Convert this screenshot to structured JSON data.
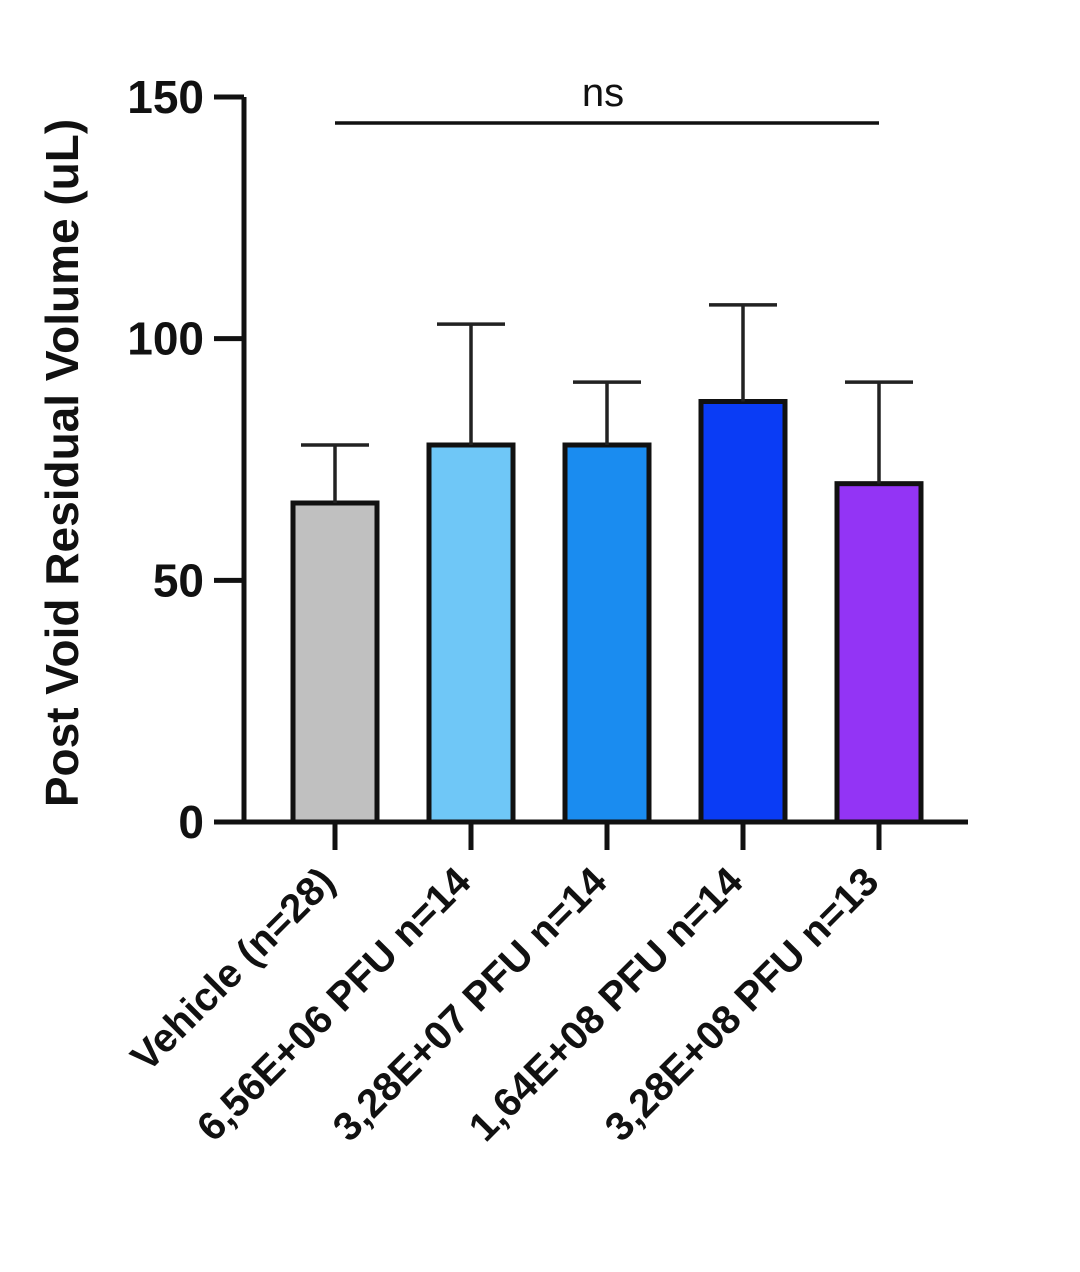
{
  "chart_data": {
    "type": "bar",
    "title": "",
    "xlabel": "",
    "ylabel": "Post Void Residual Volume (uL)",
    "ylim": [
      0,
      150
    ],
    "yticks": [
      0,
      50,
      100,
      150
    ],
    "categories": [
      "Vehicle (n=28)",
      "6,56E+06 PFU n=14",
      "3,28E+07 PFU n=14",
      "1,64E+08 PFU n=14",
      "3,28E+08 PFU n=13"
    ],
    "values": [
      66,
      78,
      78,
      87,
      70
    ],
    "error_upper": [
      78,
      103,
      91,
      107,
      91
    ],
    "colors": [
      "#c0c0c0",
      "#6fc7f7",
      "#1a8cf0",
      "#0a3cf5",
      "#9334f5"
    ],
    "grid": false,
    "legend": "none",
    "annotations": [
      {
        "text": "ns",
        "type": "significance-bar",
        "from_category": 0,
        "to_category": 4
      }
    ]
  }
}
